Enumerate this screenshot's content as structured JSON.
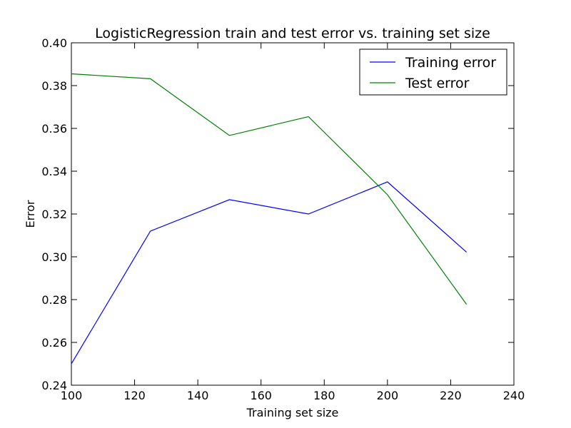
{
  "chart_data": {
    "type": "line",
    "title": "LogisticRegression train and test error vs. training set size",
    "xlabel": "Training set size",
    "ylabel": "Error",
    "xlim": [
      100,
      240
    ],
    "ylim": [
      0.24,
      0.4
    ],
    "xticks": [
      100,
      120,
      140,
      160,
      180,
      200,
      220,
      240
    ],
    "yticks": [
      0.24,
      0.26,
      0.28,
      0.3,
      0.32,
      0.34,
      0.36,
      0.38,
      0.4
    ],
    "xtick_labels": [
      "100",
      "120",
      "140",
      "160",
      "180",
      "200",
      "220",
      "240"
    ],
    "ytick_labels": [
      "0.24",
      "0.26",
      "0.28",
      "0.30",
      "0.32",
      "0.34",
      "0.36",
      "0.38",
      "0.40"
    ],
    "grid": false,
    "legend_position": "top-right",
    "x": [
      100,
      125,
      150,
      175,
      200,
      225
    ],
    "series": [
      {
        "name": "Training error",
        "color": "#0000ff",
        "values": [
          0.25,
          0.312,
          0.3267,
          0.32,
          0.335,
          0.3022
        ]
      },
      {
        "name": "Test error",
        "color": "#008000",
        "values": [
          0.3855,
          0.3832,
          0.3567,
          0.3655,
          0.329,
          0.2778
        ]
      }
    ]
  }
}
